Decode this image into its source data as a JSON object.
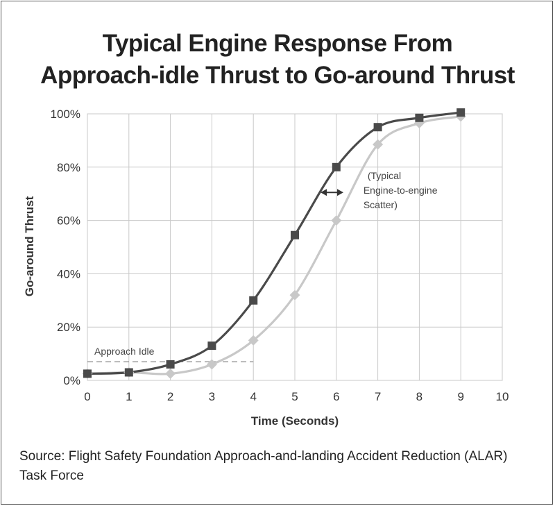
{
  "chart_data": {
    "type": "line",
    "title_lines": [
      "Typical Engine Response From",
      "Approach-idle Thrust to Go-around Thrust"
    ],
    "xlabel": "Time (Seconds)",
    "ylabel": "Go-around Thrust",
    "xlim": [
      0,
      10
    ],
    "ylim": [
      0,
      100
    ],
    "x_ticks": [
      "0",
      "1",
      "2",
      "3",
      "4",
      "5",
      "6",
      "7",
      "8",
      "9",
      "10"
    ],
    "y_ticks": [
      "0%",
      "20%",
      "40%",
      "60%",
      "80%",
      "100%"
    ],
    "grid": true,
    "x": [
      0,
      1,
      2,
      3,
      4,
      5,
      6,
      7,
      8,
      9
    ],
    "series": [
      {
        "color": "#4a4a4a",
        "marker": "square",
        "values": [
          2.5,
          3,
          6,
          13,
          30,
          54.5,
          80,
          95,
          98.5,
          100.5
        ]
      },
      {
        "color": "#c8c8c8",
        "marker": "diamond",
        "values": [
          2.5,
          3,
          2.5,
          6,
          15,
          32,
          60,
          88.5,
          96.5,
          99
        ]
      }
    ],
    "annotations": {
      "approach_idle": {
        "text": "Approach Idle",
        "y": 7,
        "x_end": 4
      },
      "scatter": {
        "lines": [
          "(Typical",
          "Engine-to-engine",
          "Scatter)"
        ]
      }
    }
  },
  "source_note": "Source: Flight Safety Foundation Approach-and-landing Accident Reduction (ALAR) Task Force"
}
